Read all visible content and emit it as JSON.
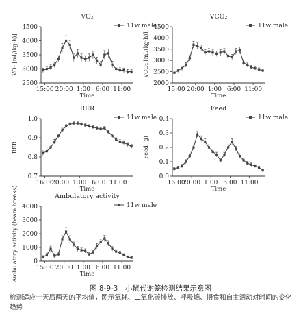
{
  "figure": {
    "caption_title": "图 8-9-3　小鼠代谢笼检测结果示意图",
    "caption_text": "检测适应一天后两天的平均值，图示氧耗、二氧化碳排放、呼吸熵、摄食和自主活动对时间的变化趋势"
  },
  "chart_data": [
    {
      "type": "line",
      "title": "VO₂",
      "ylabel": "VO₂ [ml/(kg·h)]",
      "xlabel": "Time",
      "ylim": [
        2500,
        4500
      ],
      "yticks": [
        2500,
        3000,
        3500,
        4000,
        4500
      ],
      "xlim": [
        0,
        24
      ],
      "xticks": [
        {
          "x": 1,
          "label": "15:00"
        },
        {
          "x": 6,
          "label": "20:00"
        },
        {
          "x": 11,
          "label": "1:00"
        },
        {
          "x": 16,
          "label": "6:00"
        },
        {
          "x": 21,
          "label": "11:00"
        }
      ],
      "legend": {
        "label": "11w male",
        "placement": "top-right"
      },
      "series": [
        {
          "name": "11w male",
          "values": [
            2950,
            3000,
            3050,
            3150,
            3350,
            3750,
            4000,
            3850,
            3400,
            3550,
            3400,
            3350,
            3400,
            3500,
            3300,
            3150,
            3500,
            3550,
            3150,
            3000,
            2950,
            2950,
            2900,
            2900
          ],
          "errors": [
            80,
            80,
            90,
            100,
            120,
            150,
            180,
            160,
            130,
            140,
            130,
            120,
            130,
            140,
            120,
            110,
            150,
            160,
            120,
            100,
            90,
            80,
            80,
            70
          ]
        }
      ]
    },
    {
      "type": "line",
      "title": "VCO₂",
      "ylabel": "VCO₂ [ml/(kg·h)]",
      "xlabel": "Time",
      "ylim": [
        2000,
        4500
      ],
      "yticks": [
        2000,
        2500,
        3000,
        3500,
        4000,
        4500
      ],
      "xlim": [
        0,
        24
      ],
      "xticks": [
        {
          "x": 1,
          "label": "15:00"
        },
        {
          "x": 6,
          "label": "20:00"
        },
        {
          "x": 11,
          "label": "1:00"
        },
        {
          "x": 16,
          "label": "6:00"
        },
        {
          "x": 21,
          "label": "11:00"
        }
      ],
      "legend": {
        "label": "11w male",
        "placement": "top-right"
      },
      "series": [
        {
          "name": "11w male",
          "values": [
            2450,
            2550,
            2650,
            2800,
            3100,
            3700,
            3650,
            3550,
            3350,
            3400,
            3350,
            3300,
            3350,
            3400,
            3200,
            3150,
            3400,
            3450,
            2900,
            2800,
            2700,
            2650,
            2600,
            2550
          ],
          "errors": [
            80,
            80,
            90,
            100,
            120,
            150,
            150,
            140,
            130,
            130,
            120,
            120,
            130,
            130,
            120,
            110,
            140,
            150,
            110,
            90,
            80,
            80,
            70,
            70
          ]
        }
      ]
    },
    {
      "type": "line",
      "title": "RER",
      "ylabel": "RER",
      "xlabel": "Time",
      "ylim": [
        0.7,
        1.0
      ],
      "yticks": [
        0.7,
        0.8,
        0.9,
        1.0
      ],
      "xlim": [
        0,
        24
      ],
      "xticks": [
        {
          "x": 1,
          "label": "16:00"
        },
        {
          "x": 5,
          "label": "20:00"
        },
        {
          "x": 10,
          "label": "1:00"
        },
        {
          "x": 15,
          "label": "6:00"
        },
        {
          "x": 20,
          "label": "11:00"
        }
      ],
      "legend": {
        "label": "11w male",
        "placement": "top-right"
      },
      "series": [
        {
          "name": "11w male",
          "values": [
            0.82,
            0.83,
            0.85,
            0.88,
            0.91,
            0.94,
            0.96,
            0.97,
            0.975,
            0.975,
            0.97,
            0.965,
            0.96,
            0.955,
            0.95,
            0.945,
            0.95,
            0.93,
            0.91,
            0.89,
            0.88,
            0.875,
            0.865,
            0.855
          ],
          "errors": [
            0.012,
            0.012,
            0.012,
            0.012,
            0.01,
            0.01,
            0.008,
            0.008,
            0.008,
            0.008,
            0.008,
            0.008,
            0.008,
            0.008,
            0.008,
            0.008,
            0.008,
            0.008,
            0.01,
            0.01,
            0.01,
            0.01,
            0.01,
            0.01
          ]
        }
      ]
    },
    {
      "type": "line",
      "title": "Feed",
      "ylabel": "Feed (g)",
      "xlabel": "Time",
      "ylim": [
        0.0,
        0.4
      ],
      "yticks": [
        0.0,
        0.1,
        0.2,
        0.3,
        0.4
      ],
      "xlim": [
        0,
        24
      ],
      "xticks": [
        {
          "x": 1,
          "label": "16:00"
        },
        {
          "x": 5,
          "label": "20:00"
        },
        {
          "x": 10,
          "label": "1:00"
        },
        {
          "x": 15,
          "label": "6:00"
        },
        {
          "x": 20,
          "label": "11:00"
        }
      ],
      "legend": {
        "label": "11w male",
        "placement": "top-right"
      },
      "series": [
        {
          "name": "11w male",
          "values": [
            0.05,
            0.06,
            0.07,
            0.1,
            0.14,
            0.2,
            0.29,
            0.26,
            0.24,
            0.2,
            0.17,
            0.15,
            0.11,
            0.15,
            0.2,
            0.24,
            0.19,
            0.14,
            0.11,
            0.09,
            0.08,
            0.07,
            0.06,
            0.04
          ],
          "errors": [
            0.01,
            0.01,
            0.012,
            0.015,
            0.015,
            0.018,
            0.02,
            0.02,
            0.02,
            0.018,
            0.018,
            0.016,
            0.015,
            0.016,
            0.018,
            0.02,
            0.018,
            0.016,
            0.014,
            0.012,
            0.012,
            0.01,
            0.01,
            0.01
          ]
        }
      ]
    },
    {
      "type": "line",
      "title": "Ambulatory activity",
      "ylabel": "Ambulatory activity (beam breaks)",
      "xlabel": "Time",
      "ylim": [
        0,
        4000
      ],
      "yticks": [
        0,
        1000,
        2000,
        3000,
        4000
      ],
      "xlim": [
        0,
        24
      ],
      "xticks": [
        {
          "x": 1,
          "label": "15:00"
        },
        {
          "x": 6,
          "label": "20:00"
        },
        {
          "x": 11,
          "label": "1:00"
        },
        {
          "x": 16,
          "label": "6:00"
        },
        {
          "x": 21,
          "label": "11:00"
        }
      ],
      "legend": {
        "label": "11w male",
        "placement": "top-right"
      },
      "series": [
        {
          "name": "11w male",
          "values": [
            300,
            450,
            900,
            400,
            500,
            1600,
            2150,
            1600,
            1200,
            900,
            800,
            750,
            500,
            650,
            1100,
            1400,
            1650,
            1300,
            900,
            700,
            600,
            450,
            300,
            250
          ],
          "errors": [
            100,
            150,
            200,
            150,
            150,
            250,
            300,
            250,
            200,
            180,
            160,
            150,
            120,
            140,
            180,
            200,
            220,
            200,
            160,
            140,
            120,
            100,
            90,
            80
          ]
        }
      ]
    }
  ]
}
